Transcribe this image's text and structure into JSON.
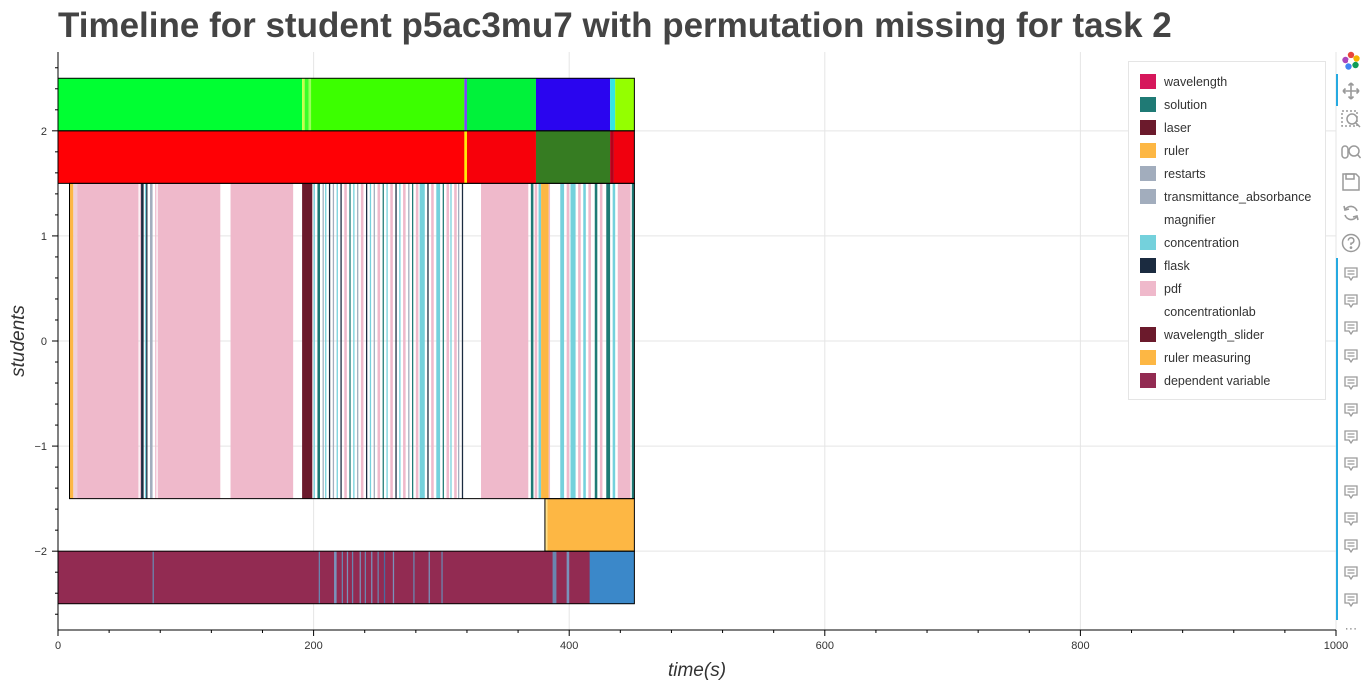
{
  "title": "Timeline for student p5ac3mu7 with permutation missing for task 2",
  "chart_data": {
    "type": "timeline",
    "title": "Timeline for student p5ac3mu7 with permutation missing for task 2",
    "xlabel": "time(s)",
    "ylabel": "students",
    "xlim": [
      0,
      1000
    ],
    "ylim": [
      -2.75,
      2.75
    ],
    "x_ticks": [
      0,
      200,
      400,
      600,
      800,
      1000
    ],
    "y_ticks": [
      -2,
      -1,
      0,
      1,
      2
    ],
    "y_tick_labels": [
      "−2",
      "−1",
      "0",
      "1",
      "2"
    ],
    "grid": true,
    "legend_position": "top-right",
    "legend": [
      {
        "label": "wavelength",
        "color": "#d6175b"
      },
      {
        "label": "solution",
        "color": "#1f7a75"
      },
      {
        "label": "laser",
        "color": "#6b1a2c"
      },
      {
        "label": "ruler",
        "color": "#fdb744"
      },
      {
        "label": "restarts",
        "color": "#a2adbd"
      },
      {
        "label": "transmittance_absorbance",
        "color": "#a2adbd"
      },
      {
        "label": "magnifier",
        "color": "#ffffff"
      },
      {
        "label": "concentration",
        "color": "#74d1dc"
      },
      {
        "label": "flask",
        "color": "#1b2b40"
      },
      {
        "label": "pdf",
        "color": "#efb9cb"
      },
      {
        "label": "concentrationlab",
        "color": "#ffffff"
      },
      {
        "label": "wavelength_slider",
        "color": "#6b1a2c"
      },
      {
        "label": "ruler measuring",
        "color": "#fdb744"
      },
      {
        "label": "dependent variable",
        "color": "#922b52"
      }
    ],
    "rows": [
      {
        "y0": 2.0,
        "y1": 2.5,
        "segments": [
          {
            "start": 0,
            "end": 191,
            "color": "#00ff32"
          },
          {
            "start": 191,
            "end": 193,
            "color": "#c6ff4a"
          },
          {
            "start": 193,
            "end": 196,
            "color": "#38ff28"
          },
          {
            "start": 196,
            "end": 198,
            "color": "#9bff5a"
          },
          {
            "start": 198,
            "end": 318,
            "color": "#3cff00"
          },
          {
            "start": 318,
            "end": 320,
            "color": "#7c3fff"
          },
          {
            "start": 320,
            "end": 374,
            "color": "#00f23a"
          },
          {
            "start": 374,
            "end": 432,
            "color": "#2a05ef"
          },
          {
            "start": 432,
            "end": 436,
            "color": "#34e5e5"
          },
          {
            "start": 436,
            "end": 451,
            "color": "#94ff00"
          }
        ]
      },
      {
        "y0": 1.5,
        "y1": 2.0,
        "segments": [
          {
            "start": 0,
            "end": 318,
            "color": "#ff0005"
          },
          {
            "start": 318,
            "end": 320,
            "color": "#ffee00"
          },
          {
            "start": 320,
            "end": 374,
            "color": "#f7000a"
          },
          {
            "start": 374,
            "end": 432,
            "color": "#367c22"
          },
          {
            "start": 432,
            "end": 435,
            "color": "#b8001a"
          },
          {
            "start": 435,
            "end": 451,
            "color": "#f0000e"
          }
        ]
      },
      {
        "y0": -1.5,
        "y1": 1.5,
        "segments": [
          {
            "start": 9,
            "end": 12,
            "color": "#fdb744"
          },
          {
            "start": 12,
            "end": 15,
            "color": "#efd0db"
          },
          {
            "start": 15,
            "end": 63,
            "color": "#efb9cb"
          },
          {
            "start": 64,
            "end": 65,
            "color": "#efb9cb"
          },
          {
            "start": 65,
            "end": 67,
            "color": "#1b2b40"
          },
          {
            "start": 68,
            "end": 69,
            "color": "#74d1dc"
          },
          {
            "start": 69,
            "end": 70,
            "color": "#1b2b40"
          },
          {
            "start": 72,
            "end": 74,
            "color": "#a2adbd"
          },
          {
            "start": 76,
            "end": 77,
            "color": "#efb9cb"
          },
          {
            "start": 78,
            "end": 127,
            "color": "#efb9cb"
          },
          {
            "start": 135,
            "end": 184,
            "color": "#efb9cb"
          },
          {
            "start": 191,
            "end": 199,
            "color": "#6b1a2c"
          },
          {
            "start": 200,
            "end": 201,
            "color": "#74d1dc"
          },
          {
            "start": 203,
            "end": 205,
            "color": "#1f7a75"
          },
          {
            "start": 207,
            "end": 208,
            "color": "#a2adbd"
          },
          {
            "start": 209,
            "end": 210,
            "color": "#74d1dc"
          },
          {
            "start": 212,
            "end": 213,
            "color": "#1b2b40"
          },
          {
            "start": 215,
            "end": 216,
            "color": "#a2adbd"
          },
          {
            "start": 218,
            "end": 219,
            "color": "#74d1dc"
          },
          {
            "start": 221,
            "end": 222,
            "color": "#1b2b40"
          },
          {
            "start": 224,
            "end": 226,
            "color": "#efb9cb"
          },
          {
            "start": 228,
            "end": 229,
            "color": "#1f7a75"
          },
          {
            "start": 231,
            "end": 232,
            "color": "#74d1dc"
          },
          {
            "start": 234,
            "end": 235,
            "color": "#a2adbd"
          },
          {
            "start": 237,
            "end": 239,
            "color": "#efb9cb"
          },
          {
            "start": 241,
            "end": 242,
            "color": "#1b2b40"
          },
          {
            "start": 244,
            "end": 245,
            "color": "#74d1dc"
          },
          {
            "start": 247,
            "end": 248,
            "color": "#a2adbd"
          },
          {
            "start": 250,
            "end": 252,
            "color": "#efb9cb"
          },
          {
            "start": 254,
            "end": 255,
            "color": "#1f7a75"
          },
          {
            "start": 257,
            "end": 258,
            "color": "#74d1dc"
          },
          {
            "start": 260,
            "end": 262,
            "color": "#efb9cb"
          },
          {
            "start": 264,
            "end": 265,
            "color": "#1b2b40"
          },
          {
            "start": 267,
            "end": 268,
            "color": "#74d1dc"
          },
          {
            "start": 270,
            "end": 272,
            "color": "#efb9cb"
          },
          {
            "start": 274,
            "end": 275,
            "color": "#a2adbd"
          },
          {
            "start": 277,
            "end": 278,
            "color": "#1f7a75"
          },
          {
            "start": 280,
            "end": 282,
            "color": "#efb9cb"
          },
          {
            "start": 283,
            "end": 287,
            "color": "#74d1dc"
          },
          {
            "start": 289,
            "end": 290,
            "color": "#1b2b40"
          },
          {
            "start": 292,
            "end": 294,
            "color": "#efb9cb"
          },
          {
            "start": 296,
            "end": 299,
            "color": "#74d1dc"
          },
          {
            "start": 301,
            "end": 302,
            "color": "#1f7a75"
          },
          {
            "start": 304,
            "end": 306,
            "color": "#efb9cb"
          },
          {
            "start": 307,
            "end": 308,
            "color": "#74d1dc"
          },
          {
            "start": 310,
            "end": 312,
            "color": "#efb9cb"
          },
          {
            "start": 313,
            "end": 314,
            "color": "#a2adbd"
          },
          {
            "start": 316,
            "end": 317,
            "color": "#1b2b40"
          },
          {
            "start": 331,
            "end": 368,
            "color": "#efb9cb"
          },
          {
            "start": 370,
            "end": 372,
            "color": "#1f7a75"
          },
          {
            "start": 373,
            "end": 375,
            "color": "#efb9cb"
          },
          {
            "start": 376,
            "end": 378,
            "color": "#74d1dc"
          },
          {
            "start": 378,
            "end": 384,
            "color": "#fdb744"
          },
          {
            "start": 384,
            "end": 385,
            "color": "#efb9cb"
          },
          {
            "start": 393,
            "end": 396,
            "color": "#74d1dc"
          },
          {
            "start": 398,
            "end": 400,
            "color": "#efb9cb"
          },
          {
            "start": 401,
            "end": 405,
            "color": "#74d1dc"
          },
          {
            "start": 407,
            "end": 409,
            "color": "#efb9cb"
          },
          {
            "start": 411,
            "end": 413,
            "color": "#74d1dc"
          },
          {
            "start": 415,
            "end": 417,
            "color": "#efb9cb"
          },
          {
            "start": 420,
            "end": 422,
            "color": "#1f7a75"
          },
          {
            "start": 424,
            "end": 426,
            "color": "#efb9cb"
          },
          {
            "start": 429,
            "end": 432,
            "color": "#1f7a75"
          },
          {
            "start": 434,
            "end": 436,
            "color": "#74d1dc"
          },
          {
            "start": 438,
            "end": 448,
            "color": "#efb9cb"
          },
          {
            "start": 449,
            "end": 451,
            "color": "#1f7a75"
          }
        ]
      },
      {
        "y0": -2.0,
        "y1": -1.5,
        "segments": [
          {
            "start": 381,
            "end": 383,
            "color": "#fde08a"
          },
          {
            "start": 383,
            "end": 451,
            "color": "#fdb744"
          }
        ]
      },
      {
        "y0": -2.5,
        "y1": -2.0,
        "segments": [
          {
            "start": 0,
            "end": 451,
            "color": "#922b52"
          },
          {
            "start": 74,
            "end": 75,
            "color": "#6a86b0"
          },
          {
            "start": 204,
            "end": 205,
            "color": "#6a86b0"
          },
          {
            "start": 216,
            "end": 218,
            "color": "#7a92bb"
          },
          {
            "start": 222,
            "end": 223,
            "color": "#6a86b0"
          },
          {
            "start": 226,
            "end": 227,
            "color": "#7a92bb"
          },
          {
            "start": 230,
            "end": 231,
            "color": "#6a86b0"
          },
          {
            "start": 236,
            "end": 237,
            "color": "#7a92bb"
          },
          {
            "start": 240,
            "end": 241,
            "color": "#6a86b0"
          },
          {
            "start": 245,
            "end": 246,
            "color": "#7a92bb"
          },
          {
            "start": 250,
            "end": 251,
            "color": "#6a86b0"
          },
          {
            "start": 255,
            "end": 256,
            "color": "#4a6aa0"
          },
          {
            "start": 262,
            "end": 263,
            "color": "#7a92bb"
          },
          {
            "start": 278,
            "end": 279,
            "color": "#6a86b0"
          },
          {
            "start": 290,
            "end": 291,
            "color": "#7a92bb"
          },
          {
            "start": 300,
            "end": 301,
            "color": "#6a86b0"
          },
          {
            "start": 387,
            "end": 390,
            "color": "#6a86b0"
          },
          {
            "start": 398,
            "end": 400,
            "color": "#7a92bb"
          },
          {
            "start": 416,
            "end": 451,
            "color": "#3b88c9"
          }
        ]
      }
    ]
  },
  "toolbar": {
    "tools": [
      "bokeh-logo-icon",
      "pan-icon",
      "box-zoom-icon",
      "wheel-zoom-icon",
      "save-icon",
      "reset-icon",
      "help-icon"
    ],
    "hover_tool_count": 13,
    "more_label": "⋯"
  }
}
